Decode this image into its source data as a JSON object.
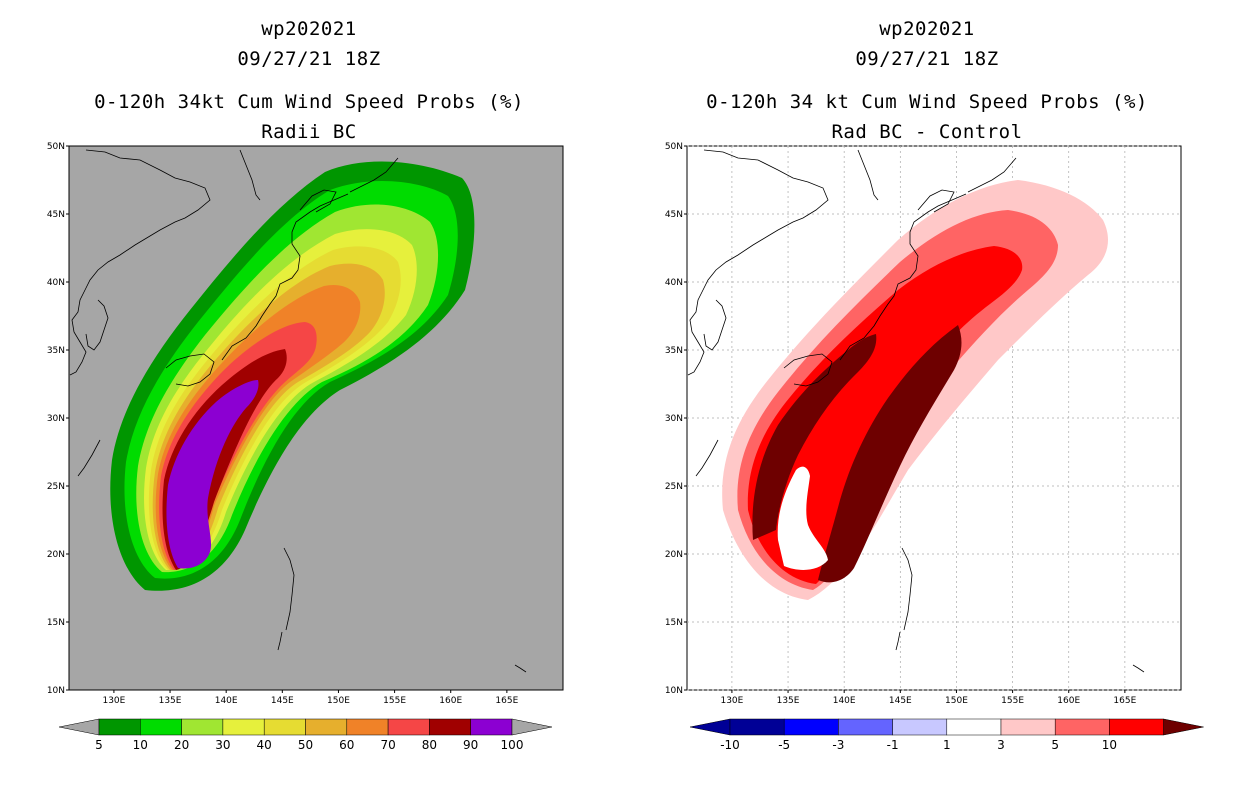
{
  "chart_data": [
    {
      "type": "heatmap",
      "panel": "left",
      "title_lines": [
        "wp202021",
        "09/27/21 18Z",
        "0-120h 34kt Cum Wind Speed Probs (%)",
        "Radii BC"
      ],
      "lon_range": [
        126,
        170
      ],
      "lat_range": [
        10,
        50
      ],
      "x_ticks": [
        "130E",
        "135E",
        "140E",
        "145E",
        "150E",
        "155E",
        "160E",
        "165E"
      ],
      "y_ticks": [
        "10N",
        "15N",
        "20N",
        "25N",
        "30N",
        "35N",
        "40N",
        "45N",
        "50N"
      ],
      "background_color": "#a6a6a6",
      "colorbar": {
        "labels": [
          "5",
          "10",
          "20",
          "30",
          "40",
          "50",
          "60",
          "70",
          "80",
          "90",
          "100"
        ],
        "colors": [
          "#009600",
          "#00dc00",
          "#a0e632",
          "#e6f03c",
          "#e6dc32",
          "#e6af2d",
          "#f08228",
          "#f54646",
          "#a00000",
          "#8c00d2"
        ],
        "end_color": "#a6a6a6"
      }
    },
    {
      "type": "heatmap",
      "panel": "right",
      "title_lines": [
        "wp202021",
        "09/27/21 18Z",
        "0-120h 34 kt Cum Wind Speed Probs (%)",
        "Rad BC - Control"
      ],
      "lon_range": [
        126,
        170
      ],
      "lat_range": [
        10,
        50
      ],
      "x_ticks": [
        "130E",
        "135E",
        "140E",
        "145E",
        "150E",
        "155E",
        "160E",
        "165E"
      ],
      "y_ticks": [
        "10N",
        "15N",
        "20N",
        "25N",
        "30N",
        "35N",
        "40N",
        "45N",
        "50N"
      ],
      "background_color": "#ffffff",
      "colorbar": {
        "labels": [
          "-10",
          "-5",
          "-3",
          "-1",
          "1",
          "3",
          "5",
          "10"
        ],
        "colors": [
          "#000096",
          "#0000ff",
          "#6464ff",
          "#c8c8ff",
          "#ffffff",
          "#ffc8c8",
          "#ff6464",
          "#ff0000"
        ],
        "low_end_color": "#000096",
        "high_end_color": "#6e0000"
      }
    }
  ]
}
